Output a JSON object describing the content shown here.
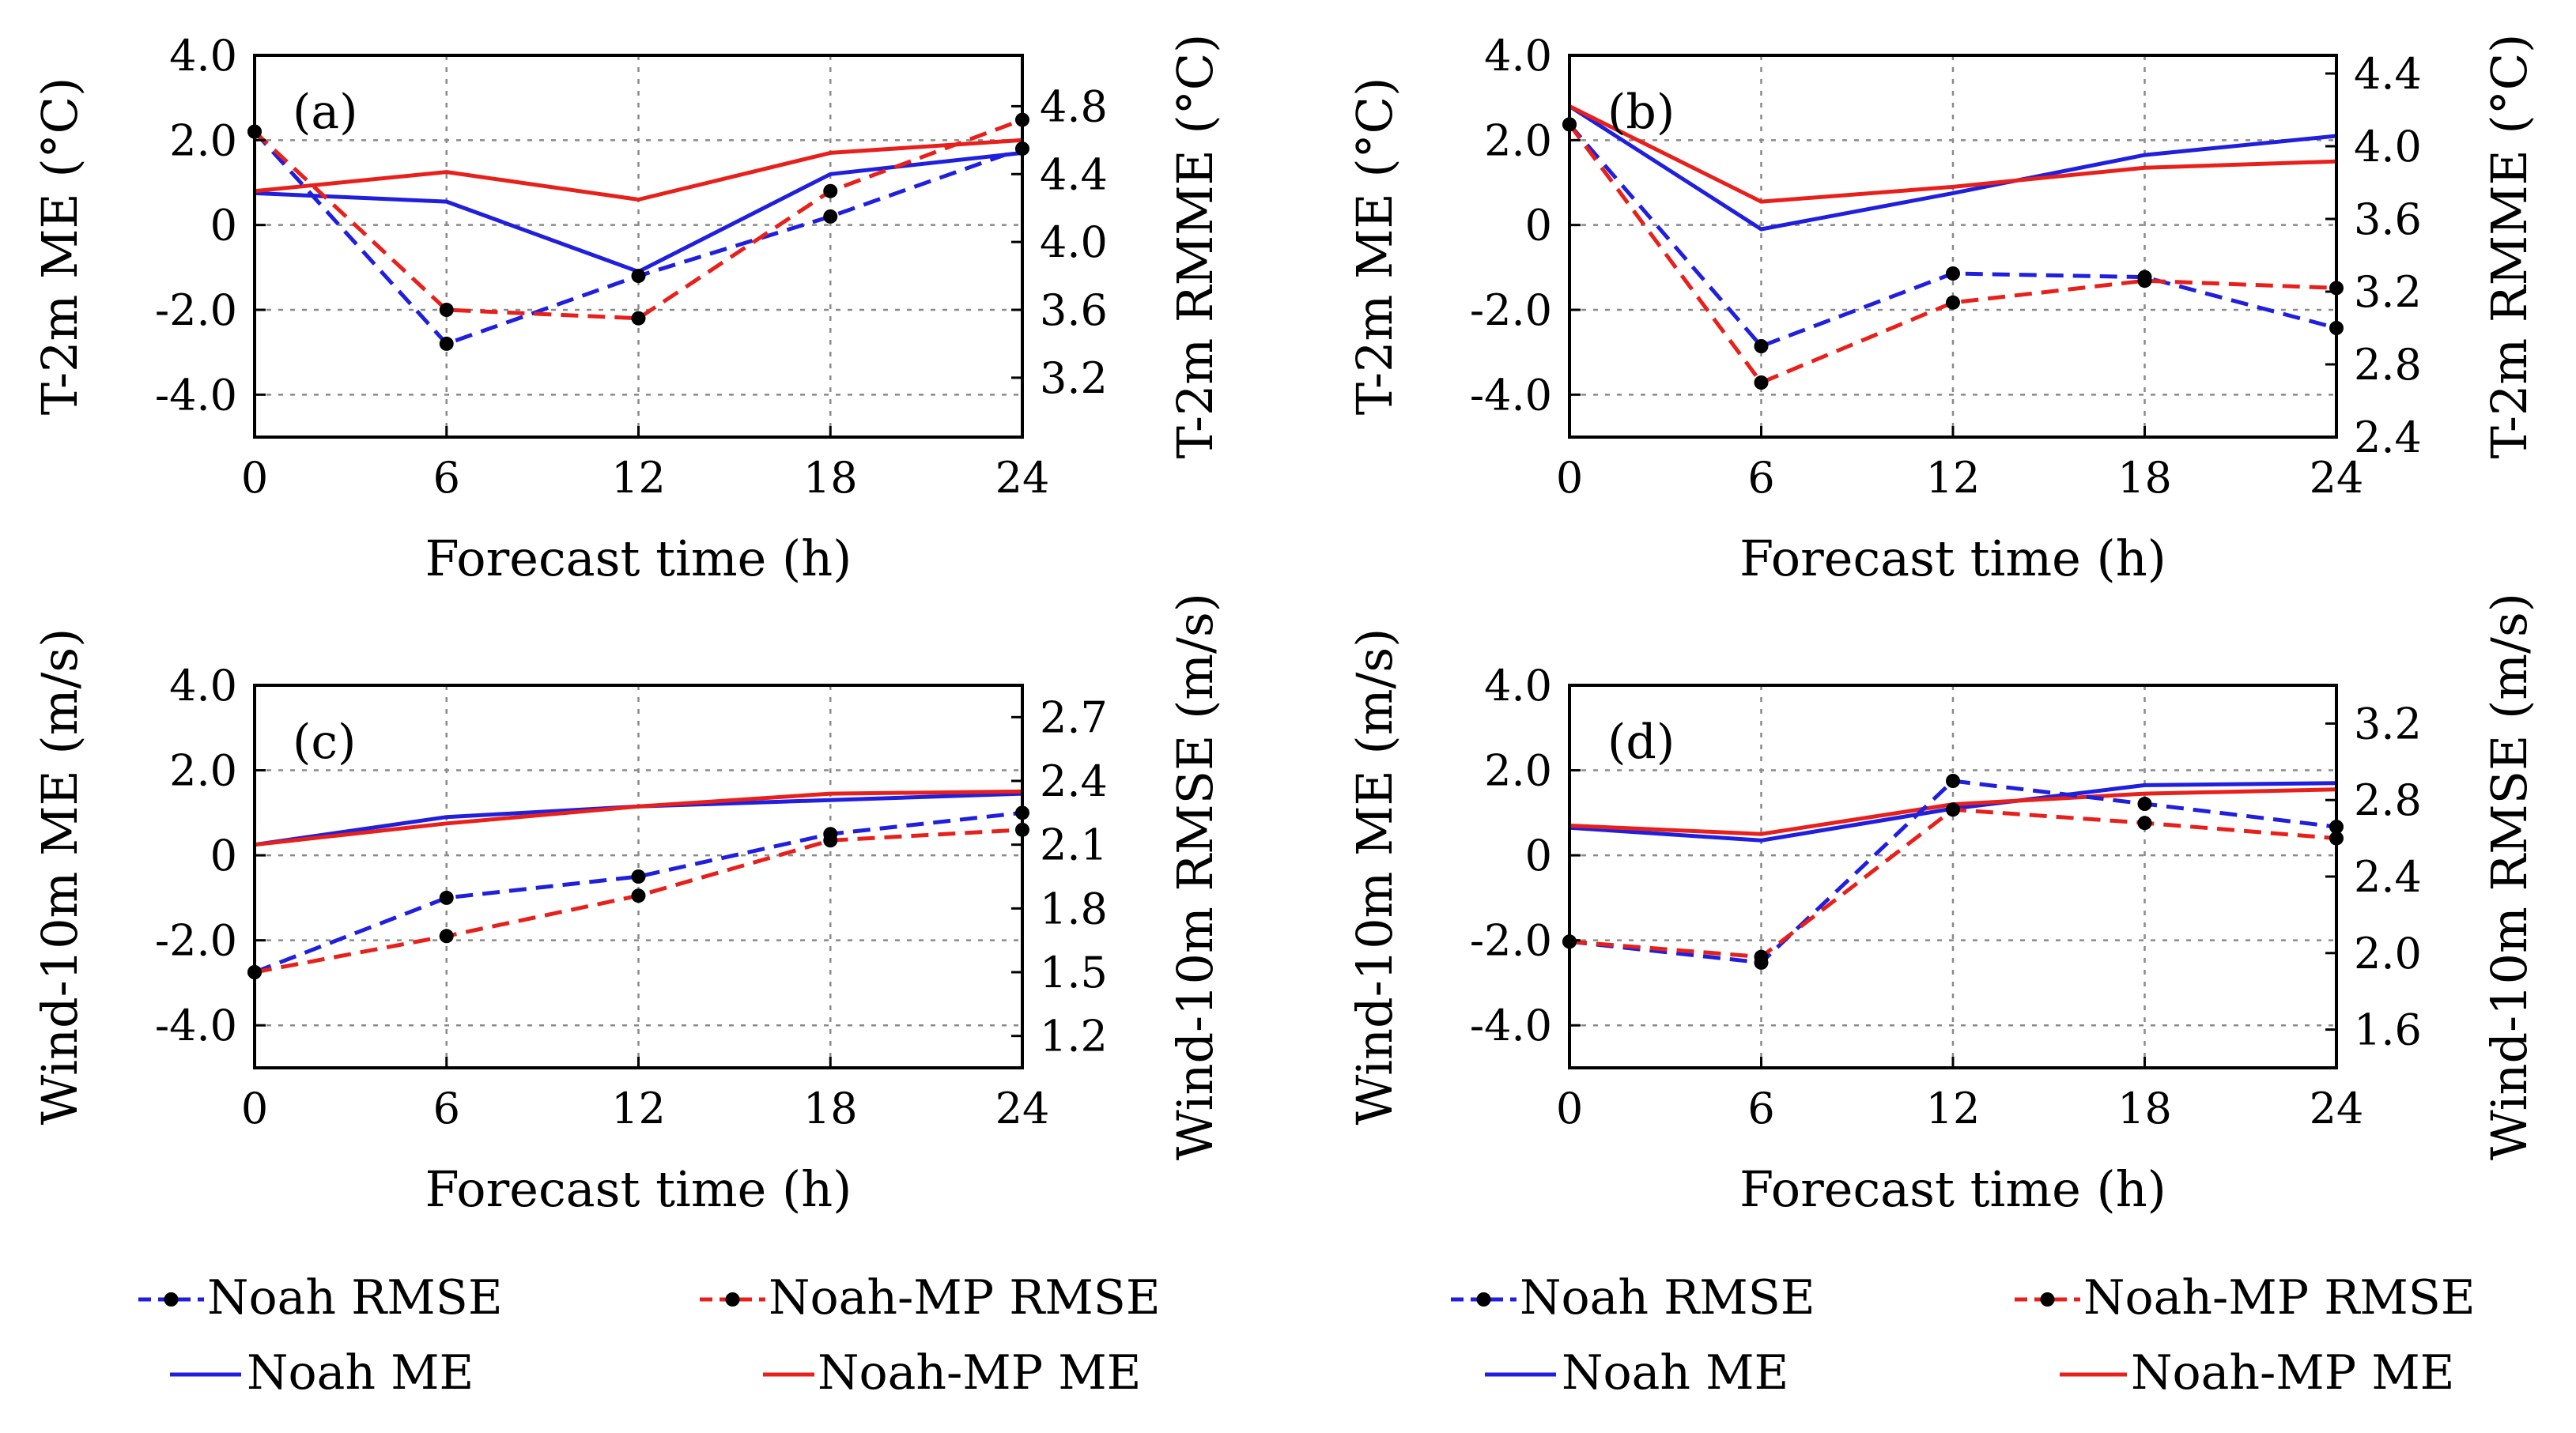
{
  "chart_data": [
    {
      "type": "line",
      "panel_label": "(a)",
      "x": [
        0,
        6,
        12,
        18,
        24
      ],
      "xticks": [
        "0",
        "6",
        "12",
        "18",
        "24"
      ],
      "xlabel": "Forecast time (h)",
      "ylabel_left": "T-2m ME (°C)",
      "ylabel_right": "T-2m RMME (°C)",
      "ylim_left": [
        -5,
        4
      ],
      "yticks_left": [
        "4.0",
        "2.0",
        "0",
        "-2.0",
        "-4.0"
      ],
      "ylim_right": [
        2.85,
        5.1
      ],
      "yticks_right": [
        "4.8",
        "4.4",
        "4.0",
        "3.6",
        "3.2"
      ],
      "series": [
        {
          "name": "Noah RMSE",
          "axis": "right",
          "color": "#1f1fdd",
          "style": "dashed",
          "markers": true,
          "values": [
            4.65,
            3.4,
            3.8,
            4.15,
            4.55
          ]
        },
        {
          "name": "Noah-MP RMSE",
          "axis": "right",
          "color": "#e8201c",
          "style": "dashed",
          "markers": true,
          "values": [
            4.65,
            3.6,
            3.55,
            4.3,
            4.72
          ]
        },
        {
          "name": "Noah ME",
          "axis": "left",
          "color": "#1f1fdd",
          "style": "solid",
          "markers": false,
          "values": [
            0.75,
            0.55,
            -1.1,
            1.2,
            1.7
          ]
        },
        {
          "name": "Noah-MP ME",
          "axis": "left",
          "color": "#e8201c",
          "style": "solid",
          "markers": false,
          "values": [
            0.8,
            1.25,
            0.6,
            1.7,
            2.0
          ]
        }
      ]
    },
    {
      "type": "line",
      "panel_label": "(b)",
      "x": [
        0,
        6,
        12,
        18,
        24
      ],
      "xticks": [
        "0",
        "6",
        "12",
        "18",
        "24"
      ],
      "xlabel": "Forecast time (h)",
      "ylabel_left": "T-2m ME (°C)",
      "ylabel_right": "T-2m RMME (°C)",
      "ylim_left": [
        -5,
        4
      ],
      "yticks_left": [
        "4.0",
        "2.0",
        "0",
        "-2.0",
        "-4.0"
      ],
      "ylim_right": [
        2.4,
        4.5
      ],
      "yticks_right": [
        "4.4",
        "4.0",
        "3.6",
        "3.2",
        "2.8",
        "2.4"
      ],
      "series": [
        {
          "name": "Noah RMSE",
          "axis": "right",
          "color": "#1f1fdd",
          "style": "dashed",
          "markers": true,
          "values": [
            4.12,
            2.9,
            3.3,
            3.28,
            3.0
          ]
        },
        {
          "name": "Noah-MP RMSE",
          "axis": "right",
          "color": "#e8201c",
          "style": "dashed",
          "markers": true,
          "values": [
            4.12,
            2.7,
            3.14,
            3.26,
            3.22
          ]
        },
        {
          "name": "Noah ME",
          "axis": "left",
          "color": "#1f1fdd",
          "style": "solid",
          "markers": false,
          "values": [
            2.8,
            -0.1,
            0.75,
            1.65,
            2.1
          ]
        },
        {
          "name": "Noah-MP ME",
          "axis": "left",
          "color": "#e8201c",
          "style": "solid",
          "markers": false,
          "values": [
            2.8,
            0.55,
            0.9,
            1.35,
            1.5
          ]
        }
      ]
    },
    {
      "type": "line",
      "panel_label": "(c)",
      "x": [
        0,
        6,
        12,
        18,
        24
      ],
      "xticks": [
        "0",
        "6",
        "12",
        "18",
        "24"
      ],
      "xlabel": "Forecast time (h)",
      "ylabel_left": "Wind-10m ME (m/s)",
      "ylabel_right": "Wind-10m RMSE  (m/s)",
      "ylim_left": [
        -5,
        4
      ],
      "yticks_left": [
        "4.0",
        "2.0",
        "0",
        "-2.0",
        "-4.0"
      ],
      "ylim_right": [
        1.05,
        2.85
      ],
      "yticks_right": [
        "2.7",
        "2.4",
        "2.1",
        "1.8",
        "1.5",
        "1.2"
      ],
      "series": [
        {
          "name": "Noah RMSE",
          "axis": "right",
          "color": "#1f1fdd",
          "style": "dashed",
          "markers": true,
          "values": [
            1.5,
            1.85,
            1.95,
            2.15,
            2.25
          ]
        },
        {
          "name": "Noah-MP RMSE",
          "axis": "right",
          "color": "#e8201c",
          "style": "dashed",
          "markers": true,
          "values": [
            1.5,
            1.67,
            1.86,
            2.12,
            2.17
          ]
        },
        {
          "name": "Noah ME",
          "axis": "left",
          "color": "#1f1fdd",
          "style": "solid",
          "markers": false,
          "values": [
            0.25,
            0.9,
            1.15,
            1.3,
            1.45
          ]
        },
        {
          "name": "Noah-MP ME",
          "axis": "left",
          "color": "#e8201c",
          "style": "solid",
          "markers": false,
          "values": [
            0.25,
            0.75,
            1.15,
            1.45,
            1.5
          ]
        }
      ]
    },
    {
      "type": "line",
      "panel_label": "(d)",
      "x": [
        0,
        6,
        12,
        18,
        24
      ],
      "xticks": [
        "0",
        "6",
        "12",
        "18",
        "24"
      ],
      "xlabel": "Forecast time (h)",
      "ylabel_left": "Wind-10m ME (m/s)",
      "ylabel_right": "Wind-10m RMSE  (m/s)",
      "ylim_left": [
        -5,
        4
      ],
      "yticks_left": [
        "4.0",
        "2.0",
        "0",
        "-2.0",
        "-4.0"
      ],
      "ylim_right": [
        1.4,
        3.4
      ],
      "yticks_right": [
        "3.2",
        "2.8",
        "2.4",
        "2.0",
        "1.6"
      ],
      "series": [
        {
          "name": "Noah RMSE",
          "axis": "right",
          "color": "#1f1fdd",
          "style": "dashed",
          "markers": true,
          "values": [
            2.06,
            1.95,
            2.9,
            2.78,
            2.66
          ]
        },
        {
          "name": "Noah-MP RMSE",
          "axis": "right",
          "color": "#e8201c",
          "style": "dashed",
          "markers": true,
          "values": [
            2.06,
            1.98,
            2.75,
            2.68,
            2.6
          ]
        },
        {
          "name": "Noah ME",
          "axis": "left",
          "color": "#1f1fdd",
          "style": "solid",
          "markers": false,
          "values": [
            0.65,
            0.35,
            1.1,
            1.65,
            1.7
          ]
        },
        {
          "name": "Noah-MP ME",
          "axis": "left",
          "color": "#e8201c",
          "style": "solid",
          "markers": false,
          "values": [
            0.7,
            0.5,
            1.2,
            1.45,
            1.55
          ]
        }
      ]
    }
  ],
  "legends": [
    {
      "items": [
        {
          "label": "Noah RMSE",
          "color": "#1f1fdd",
          "style": "dashed",
          "marker": true
        },
        {
          "label": "Noah-MP RMSE",
          "color": "#e8201c",
          "style": "dashed",
          "marker": true
        },
        {
          "label": "Noah ME",
          "color": "#1f1fdd",
          "style": "solid",
          "marker": false
        },
        {
          "label": "Noah-MP ME",
          "color": "#e8201c",
          "style": "solid",
          "marker": false
        }
      ]
    },
    {
      "items": [
        {
          "label": "Noah RMSE",
          "color": "#1f1fdd",
          "style": "dashed",
          "marker": true
        },
        {
          "label": "Noah-MP RMSE",
          "color": "#e8201c",
          "style": "dashed",
          "marker": true
        },
        {
          "label": "Noah ME",
          "color": "#1f1fdd",
          "style": "solid",
          "marker": false
        },
        {
          "label": "Noah-MP ME",
          "color": "#e8201c",
          "style": "solid",
          "marker": false
        }
      ]
    }
  ]
}
